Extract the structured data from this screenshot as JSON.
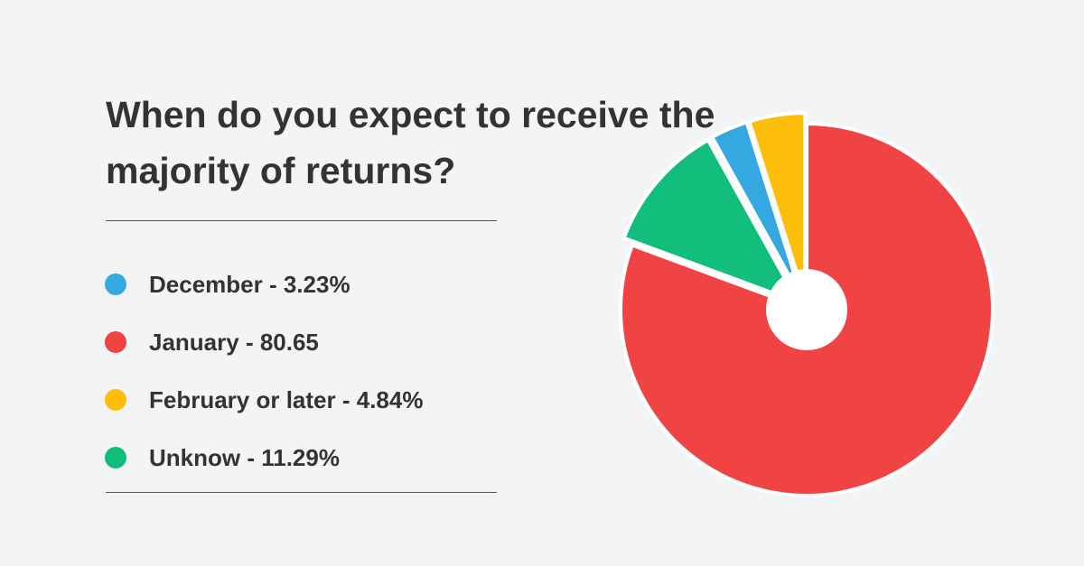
{
  "chart_data": {
    "type": "pie",
    "title": "When do you expect to receive the majority of returns?",
    "categories": [
      "December - 3.23%",
      "January - 80.65",
      "February or later - 4.84%",
      "Unknow - 11.29%"
    ],
    "values": [
      3.23,
      80.65,
      4.84,
      11.29
    ],
    "colors": [
      "#35a7e1",
      "#f04343",
      "#fdbd0b",
      "#12be7b"
    ]
  }
}
